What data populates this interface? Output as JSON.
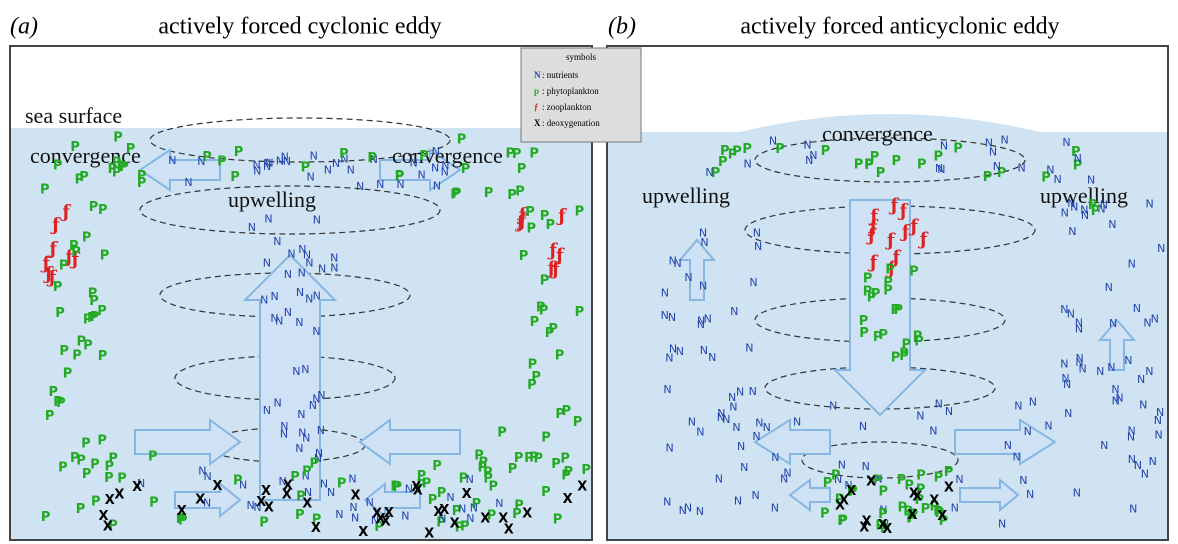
{
  "header": {
    "a": {
      "label": "(a)",
      "title": "actively forced cyclonic eddy"
    },
    "b": {
      "label": "(b)",
      "title": "actively forced anticyclonic eddy"
    }
  },
  "legend": {
    "title": "symbols",
    "items": [
      {
        "symbol": "N",
        "text": ": nutrients"
      },
      {
        "symbol": "p",
        "text": ": phytoplankton"
      },
      {
        "symbol": "ƒ",
        "text": ": zooplankton"
      },
      {
        "symbol": "X",
        "text": ": deoxygenation"
      }
    ]
  },
  "glyphs": {
    "nutrient": "N",
    "phytoplankton": "P",
    "zooplankton": "ƒ",
    "deoxygenation": "X"
  },
  "panels": [
    {
      "labels": [
        "sea surface",
        "convergence",
        "convergence",
        "upwelling"
      ]
    },
    {
      "labels": [
        "convergence",
        "upwelling",
        "upwelling"
      ]
    }
  ]
}
